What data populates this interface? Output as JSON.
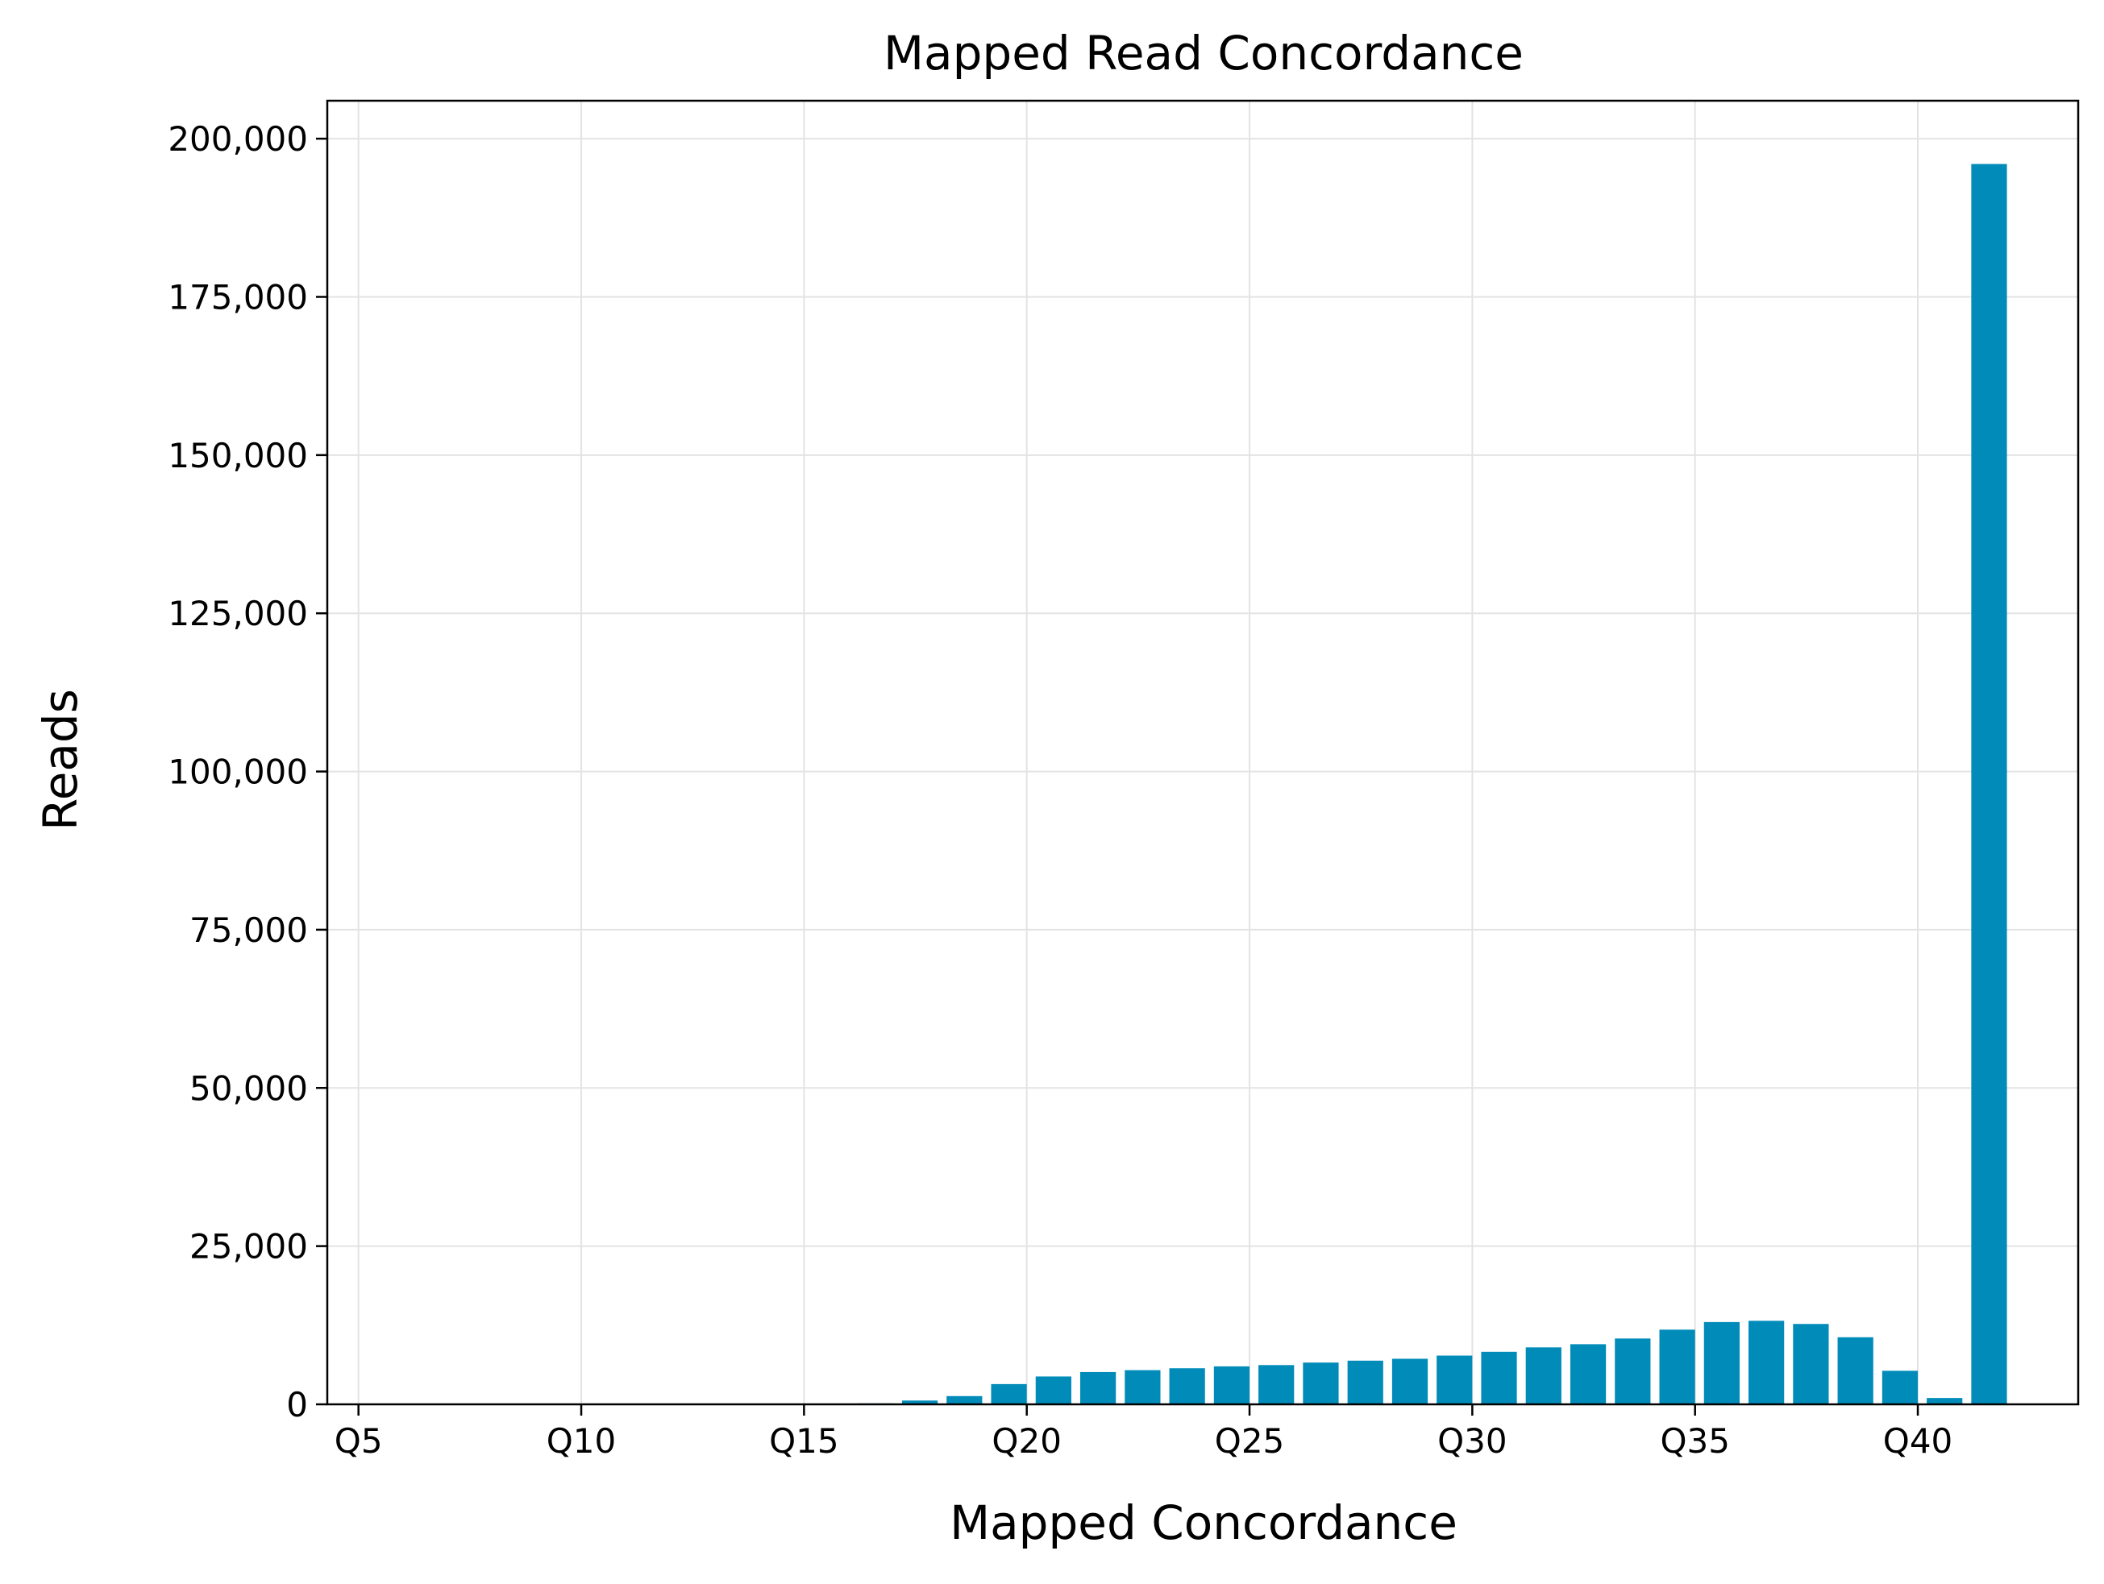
{
  "chart_data": {
    "type": "bar",
    "title": "Mapped Read Concordance",
    "xlabel": "Mapped Concordance",
    "ylabel": "Reads",
    "grid": true,
    "legend": "none",
    "bar_color": "#008bb9",
    "xlim": [
      4.3,
      43.6
    ],
    "ylim": [
      0,
      206000
    ],
    "x_ticks": [
      {
        "value": 5,
        "label": "Q5"
      },
      {
        "value": 10,
        "label": "Q10"
      },
      {
        "value": 15,
        "label": "Q15"
      },
      {
        "value": 20,
        "label": "Q20"
      },
      {
        "value": 25,
        "label": "Q25"
      },
      {
        "value": 30,
        "label": "Q30"
      },
      {
        "value": 35,
        "label": "Q35"
      },
      {
        "value": 40,
        "label": "Q40"
      }
    ],
    "y_ticks": [
      {
        "value": 0,
        "label": "0"
      },
      {
        "value": 25000,
        "label": "25,000"
      },
      {
        "value": 50000,
        "label": "50,000"
      },
      {
        "value": 75000,
        "label": "75,000"
      },
      {
        "value": 100000,
        "label": "100,000"
      },
      {
        "value": 125000,
        "label": "125,000"
      },
      {
        "value": 150000,
        "label": "150,000"
      },
      {
        "value": 175000,
        "label": "175,000"
      },
      {
        "value": 200000,
        "label": "200,000"
      }
    ],
    "bar_width": 0.8,
    "x": [
      16.6,
      17.6,
      18.6,
      19.6,
      20.6,
      21.6,
      22.6,
      23.6,
      24.6,
      25.6,
      26.6,
      27.6,
      28.6,
      29.6,
      30.6,
      31.6,
      32.6,
      33.6,
      34.6,
      35.6,
      36.6,
      37.6,
      38.6,
      39.6,
      40.6,
      41.6
    ],
    "values": [
      150,
      600,
      1300,
      3200,
      4400,
      5100,
      5400,
      5700,
      6000,
      6200,
      6600,
      6900,
      7200,
      7700,
      8300,
      9000,
      9500,
      10400,
      11800,
      13000,
      13200,
      12700,
      10600,
      5300,
      1000,
      196000
    ]
  }
}
